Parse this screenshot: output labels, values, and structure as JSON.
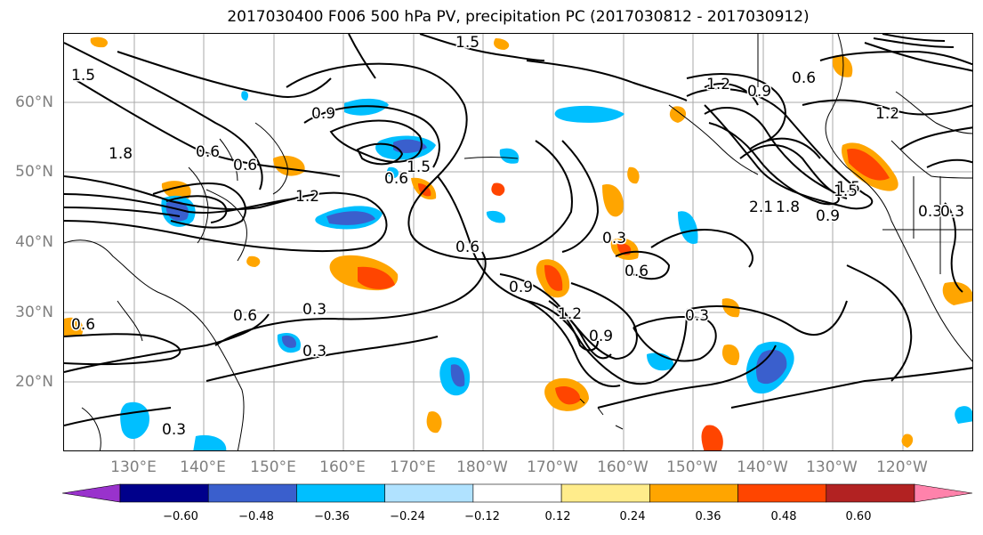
{
  "title": "2017030400 F006 500 hPa PV, precipitation PC (2017030812 - 2017030912)",
  "lat_labels": [
    "60°N",
    "50°N",
    "40°N",
    "30°N",
    "20°N"
  ],
  "lon_labels": [
    "130°E",
    "140°E",
    "150°E",
    "160°E",
    "170°E",
    "180°W",
    "170°W",
    "160°W",
    "150°W",
    "140°W",
    "130°W",
    "120°W"
  ],
  "colorbar": {
    "ticks": [
      "−0.60",
      "−0.48",
      "−0.36",
      "−0.24",
      "−0.12",
      "0.12",
      "0.24",
      "0.36",
      "0.48",
      "0.60"
    ],
    "colors": [
      "#9932cc",
      "#00008b",
      "#3a5fcd",
      "#00bfff",
      "#b0e2ff",
      "#ffffff",
      "#ffec8b",
      "#ffa500",
      "#ff4500",
      "#b22222",
      "#ff82ab"
    ]
  },
  "contour_labels": [
    "1.5",
    "1.5",
    "1.2",
    "0.9",
    "0.6",
    "1.2",
    "1.5",
    "0.3",
    "1.8",
    "0.6",
    "0.6",
    "1.2",
    "0.6",
    "1.5",
    "0.9",
    "2.1",
    "1.8",
    "1.5",
    "0.9",
    "0.3",
    "0.6",
    "0.3",
    "0.9",
    "1.2",
    "0.9",
    "0.6",
    "0.6",
    "0.3",
    "0.6",
    "0.3",
    "0.3",
    "0.3"
  ]
}
